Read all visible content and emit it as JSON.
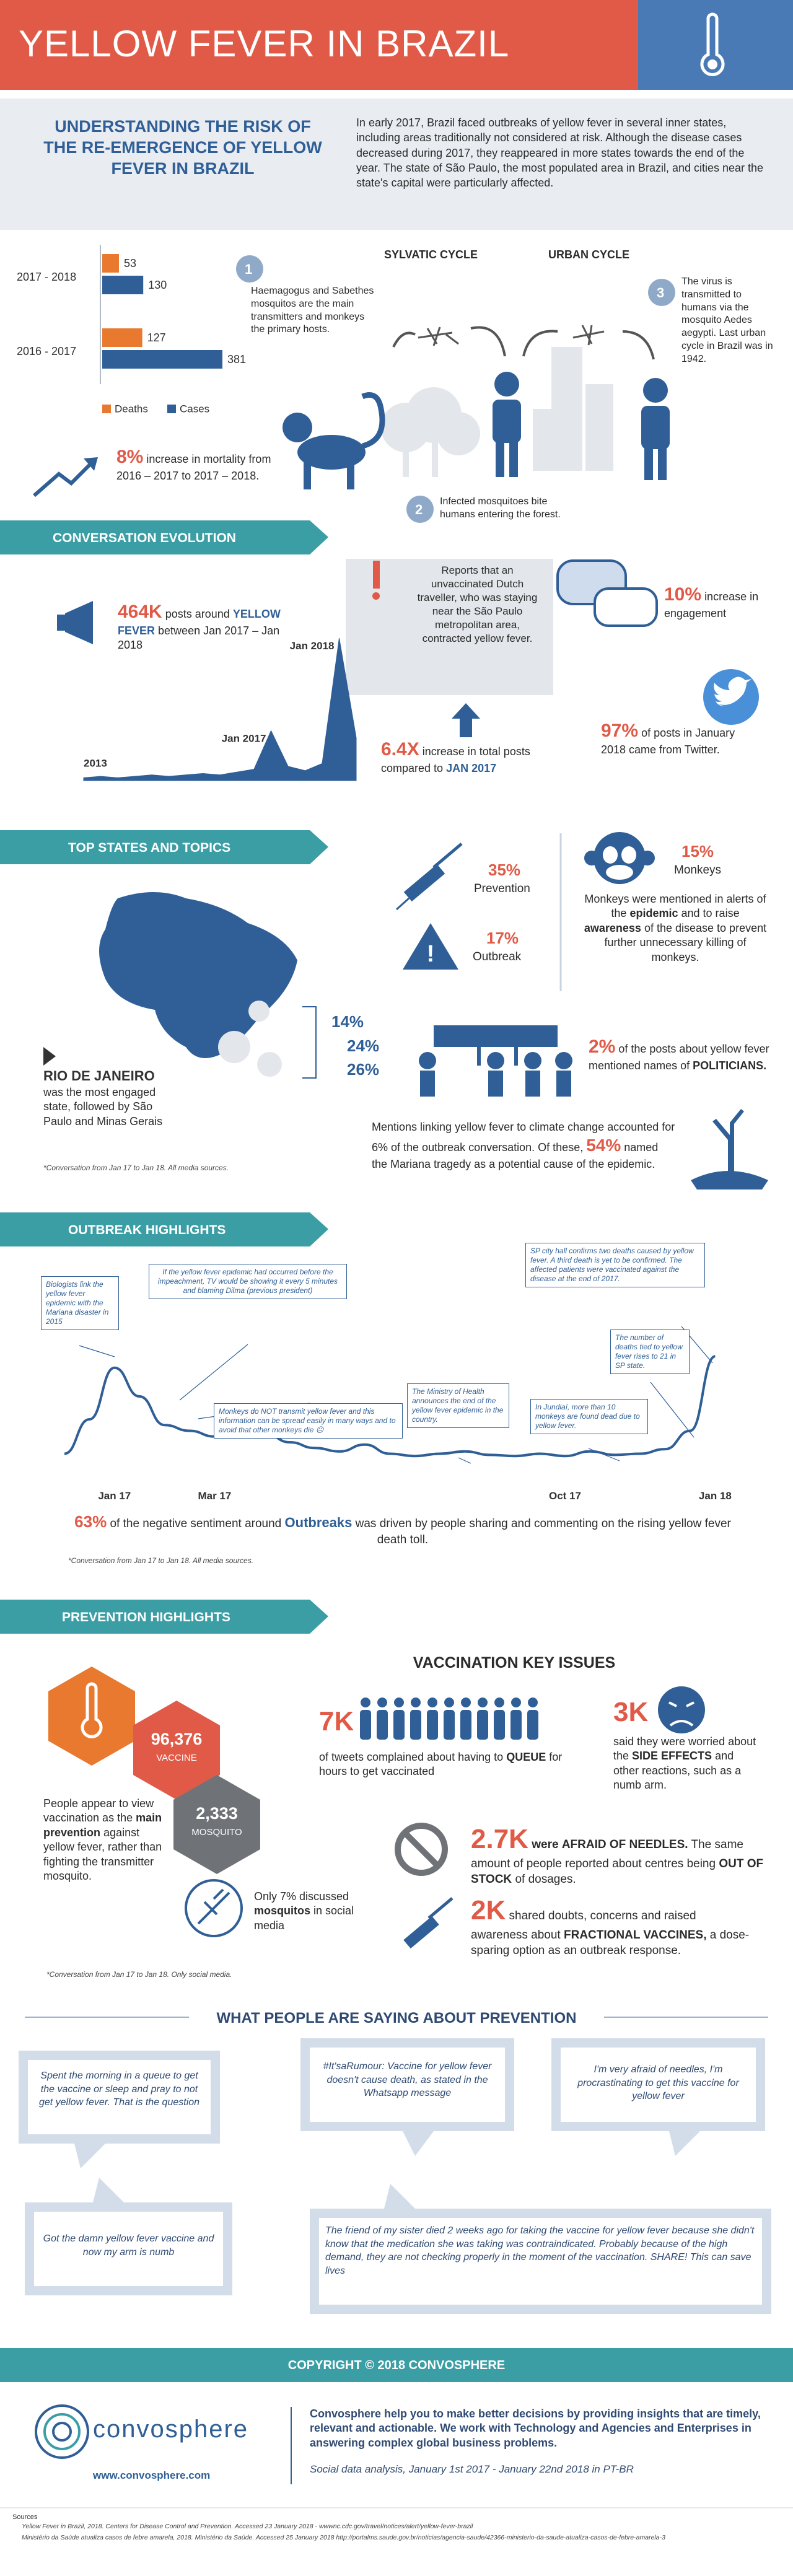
{
  "header": {
    "title": "YELLOW FEVER IN BRAZIL"
  },
  "intro": {
    "heading": "UNDERSTANDING THE RISK OF THE RE-EMERGENCE OF YELLOW FEVER IN BRAZIL",
    "text": "In early 2017, Brazil faced outbreaks of yellow fever in several inner states, including areas traditionally not considered at risk. Although the disease cases decreased during 2017, they reappeared in more states towards the end of the year. The state of São Paulo, the most populated area in Brazil, and cities near the state's capital were particularly affected."
  },
  "chart_data": [
    {
      "type": "bar",
      "orientation": "horizontal",
      "categories": [
        "2017 - 2018",
        "2016 - 2017"
      ],
      "series": [
        {
          "name": "Deaths",
          "color": "#e8792f",
          "values": [
            53,
            127
          ]
        },
        {
          "name": "Cases",
          "color": "#2f5f96",
          "values": [
            130,
            381
          ]
        }
      ]
    },
    {
      "type": "area",
      "color": "#2f5f96",
      "ylim": [
        0,
        100
      ],
      "categories": [
        "2013",
        null,
        null,
        null,
        null,
        null,
        null,
        null,
        null,
        null,
        null,
        "Jan 2017",
        null,
        null,
        null,
        "Jan 2018",
        null
      ],
      "values": [
        2,
        3,
        2,
        3,
        4,
        3,
        4,
        5,
        4,
        6,
        8,
        35,
        10,
        7,
        12,
        100,
        30
      ]
    },
    {
      "type": "line",
      "color": "#2f5f96",
      "ylim": [
        0,
        100
      ],
      "categories": [
        null,
        null,
        "Jan 17",
        null,
        null,
        null,
        "Mar 17",
        null,
        null,
        null,
        null,
        null,
        null,
        null,
        null,
        null,
        null,
        null,
        null,
        null,
        "Oct 17",
        null,
        null,
        null,
        null,
        null,
        "Jan 18"
      ],
      "values": [
        10,
        40,
        85,
        60,
        35,
        30,
        25,
        32,
        28,
        20,
        15,
        12,
        18,
        10,
        8,
        10,
        12,
        9,
        8,
        10,
        8,
        12,
        9,
        10,
        14,
        30,
        95
      ],
      "annotations": [
        "Biologists link the yellow fever epidemic with the Mariana disaster in 2015",
        "If the yellow fever epidemic had occurred before the impeachment, TV would be showing it every 5 minutes and blaming Dilma (previous president)",
        "Monkeys do NOT transmit yellow fever and this information can be spread easily in many ways and to avoid that other monkeys die ☹",
        "The Ministry of Health announces the end of the yellow fever epidemic in the country.",
        "SP city hall confirms two deaths caused by yellow fever. A third death is yet to be confirmed. The affected patients were vaccinated against the disease at the end of 2017.",
        "In Jundiaí, more than 10 monkeys are found dead due to yellow fever.",
        "The number of deaths tied to yellow fever rises to 21 in SP state."
      ]
    }
  ],
  "mortality": {
    "value": "8%",
    "text": "increase in mortality from 2016 – 2017 to 2017 – 2018."
  },
  "cycle": {
    "sylvatic": "SYLVATIC CYCLE",
    "urban": "URBAN CYCLE",
    "steps": [
      {
        "number": "1",
        "text": "Haemagogus and Sabethes mosquitos are the main transmitters and monkeys the primary hosts."
      },
      {
        "number": "2",
        "text": "Infected mosquitoes bite humans entering the forest."
      },
      {
        "number": "3",
        "text": "The virus is transmitted to humans via the mosquito Aedes aegypti. Last urban cycle in Brazil was in 1942."
      }
    ]
  },
  "conversation": {
    "title": "CONVERSATION EVOLUTION",
    "posts": {
      "value": "464K",
      "parts": [
        "posts around",
        "YELLOW FEVER",
        "between Jan 2017 – Jan 2018"
      ]
    },
    "quote": "Reports that an unvaccinated Dutch traveller, who was staying near the São Paulo metropolitan area, contracted yellow fever.",
    "growth": {
      "value": "6.4X",
      "parts": [
        "increase in total posts compared to",
        "JAN 2017"
      ]
    },
    "engagement": {
      "value": "10%",
      "text": "increase in engagement"
    },
    "twitter": {
      "value": "97%",
      "text": "of posts in January 2018 came from Twitter."
    }
  },
  "states": {
    "title": "TOP STATES AND TOPICS",
    "shares": [
      "14%",
      "24%",
      "26%"
    ],
    "state": {
      "name": "RIO DE JANEIRO",
      "text": "was the most engaged state, followed by São Paulo and Minas Gerais"
    },
    "note": "*Conversation from Jan 17 to Jan 18.  All media sources.",
    "topics": [
      {
        "value": "35%",
        "label": "Prevention"
      },
      {
        "value": "17%",
        "label": "Outbreak"
      },
      {
        "value": "15%",
        "label": "Monkeys"
      }
    ],
    "monkeys_text": [
      "Monkeys were mentioned in alerts of the",
      "epidemic",
      "and to raise",
      "awareness",
      "of the disease to prevent further unnecessary killing of monkeys."
    ],
    "politicians": {
      "value": "2%",
      "parts": [
        "of the posts about yellow fever mentioned names of",
        "POLITICIANS."
      ]
    },
    "climate": {
      "parts": [
        "Mentions linking yellow fever to climate change accounted for 6% of the outbreak conversation. Of these,",
        "54%",
        "named the Mariana tragedy as a potential cause of the epidemic."
      ]
    }
  },
  "outbreak": {
    "title": "OUTBREAK HIGHLIGHTS",
    "sentiment": {
      "value": "63%",
      "parts": [
        "of the negative sentiment around",
        "Outbreaks",
        "was driven by people sharing and commenting on the rising yellow fever death toll."
      ]
    },
    "note": "*Conversation from Jan 17 to Jan 18.  All media sources."
  },
  "prevention": {
    "title": "PREVENTION HIGHLIGHTS",
    "vaccine": {
      "value": "96,376",
      "label": "VACCINE"
    },
    "mosquito": {
      "value": "2,333",
      "label": "MOSQUITO"
    },
    "text": [
      "People appear to view vaccination as the",
      "main prevention",
      "against yellow fever, rather than fighting the transmitter mosquito."
    ],
    "mosquitos_share": [
      "Only 7% discussed",
      "mosquitos",
      "in social media"
    ],
    "note": "*Conversation from Jan 17 to Jan 18.  Only social media.",
    "issues_title": "VACCINATION KEY ISSUES",
    "issues": [
      {
        "value": "7K",
        "parts": [
          "of tweets complained about having to",
          "QUEUE",
          "for hours to get vaccinated"
        ]
      },
      {
        "value": "3K",
        "parts": [
          "said they were worried about the",
          "SIDE EFFECTS",
          "and other reactions, such as a numb arm."
        ]
      },
      {
        "value": "2.7K",
        "parts": [
          "were",
          "AFRAID OF NEEDLES.",
          "The same amount of people reported about centres being",
          "OUT OF STOCK",
          "of dosages."
        ]
      },
      {
        "value": "2K",
        "parts": [
          "shared doubts, concerns and raised awareness about",
          "FRACTIONAL VACCINES,",
          "a dose-sparing option as an outbreak response."
        ]
      }
    ]
  },
  "quotes": {
    "title": "WHAT PEOPLE ARE SAYING ABOUT PREVENTION",
    "items": [
      "Spent the morning in a queue to get the vaccine or sleep and pray to not get yellow fever. That is the question",
      "#It'saRumour: Vaccine for yellow fever doesn't cause death, as stated in the Whatsapp message",
      "I'm very afraid of needles, I'm procrastinating to get this vaccine for yellow fever",
      "Got the damn yellow fever vaccine and now my arm is numb",
      "The friend of my sister died 2 weeks ago for taking the vaccine for yellow fever because she didn't know that the medication she was taking was contraindicated.  Probably because of the high demand, they are not checking properly in the moment of the vaccination. SHARE! This can save lives"
    ]
  },
  "footer": {
    "copyright": "COPYRIGHT © 2018 CONVOSPHERE",
    "brand": "convosphere",
    "url": "www.convosphere.com",
    "about": "Convosphere help you to make better decisions by providing insights that are timely, relevant and actionable. We work with Technology and Agencies and Enterprises in answering complex global business problems.",
    "period": "Social data analysis, January 1st 2017 - January 22nd 2018 in PT-BR",
    "sources_title": "Sources",
    "sources": [
      "Yellow Fever in Brazil, 2018. Centers for Disease Control and Prevention. Accessed 23 January 2018 - wwwnc.cdc.gov/travel/notices/alert/yellow-fever-brazil",
      "Ministério da Saúde atualiza casos de febre amarela, 2018. Ministério da Saúde. Accessed 25 January 2018 http://portalms.saude.gov.br/noticias/agencia-saude/42366-ministerio-da-saude-atualiza-casos-de-febre-amarela-3"
    ]
  }
}
